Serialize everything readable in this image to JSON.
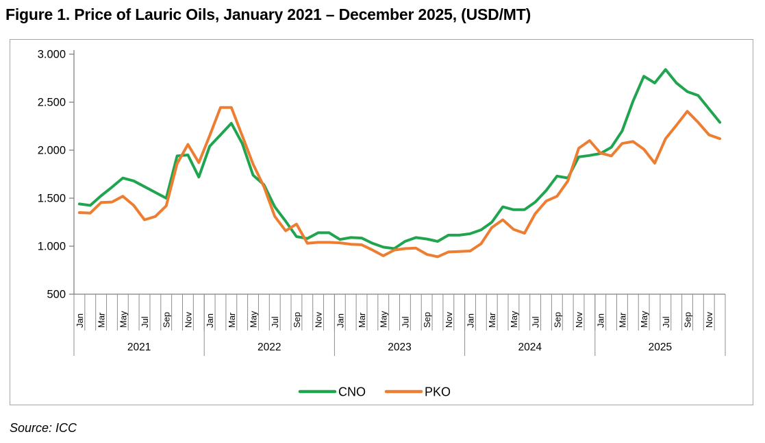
{
  "title": "Figure 1. Price of Lauric Oils, January 2021 – December 2025, (USD/MT)",
  "source": "Source: ICC",
  "chart_data": {
    "type": "line",
    "title": "Figure 1. Price of Lauric Oils, January 2021 – December 2025, (USD/MT)",
    "unit": "USD/MT",
    "grid": false,
    "legend_position": "bottom",
    "years": [
      "2021",
      "2022",
      "2023",
      "2024",
      "2025"
    ],
    "month_tick_labels": [
      "Jan",
      "Mar",
      "May",
      "Jul",
      "Sep",
      "Nov"
    ],
    "y_axis": {
      "min": 500,
      "max": 3000,
      "step": 500,
      "tick_values": [
        500,
        1000,
        1500,
        2000,
        2500,
        3000
      ],
      "tick_labels": [
        "500",
        "1.000",
        "1.500",
        "2.000",
        "2.500",
        "3.000"
      ]
    },
    "series": [
      {
        "name": "CNO",
        "color": "#21a450",
        "values": [
          1440,
          1425,
          1525,
          1615,
          1710,
          1680,
          1620,
          1560,
          1500,
          1940,
          1950,
          1720,
          2040,
          2160,
          2280,
          2070,
          1740,
          1640,
          1410,
          1260,
          1100,
          1080,
          1140,
          1140,
          1070,
          1090,
          1085,
          1030,
          990,
          975,
          1050,
          1090,
          1075,
          1050,
          1115,
          1115,
          1130,
          1170,
          1250,
          1410,
          1380,
          1380,
          1460,
          1580,
          1730,
          1710,
          1930,
          1945,
          1965,
          2030,
          2200,
          2510,
          2770,
          2700,
          2840,
          2700,
          2610,
          2570,
          2430,
          2290
        ]
      },
      {
        "name": "PKO",
        "color": "#ed7d31",
        "values": [
          1350,
          1345,
          1455,
          1460,
          1520,
          1425,
          1275,
          1310,
          1420,
          1860,
          2060,
          1870,
          2150,
          2445,
          2445,
          2150,
          1855,
          1620,
          1310,
          1160,
          1230,
          1030,
          1040,
          1040,
          1035,
          1020,
          1015,
          960,
          900,
          960,
          975,
          980,
          915,
          890,
          940,
          945,
          950,
          1025,
          1195,
          1275,
          1175,
          1135,
          1340,
          1470,
          1520,
          1680,
          2020,
          2100,
          1970,
          1940,
          2070,
          2090,
          2010,
          1865,
          2120,
          2260,
          2405,
          2290,
          2160,
          2120
        ]
      }
    ],
    "axis_color": "#7f7f7f",
    "tick_line_color": "#8c8c8c",
    "label_color": "#000000"
  }
}
